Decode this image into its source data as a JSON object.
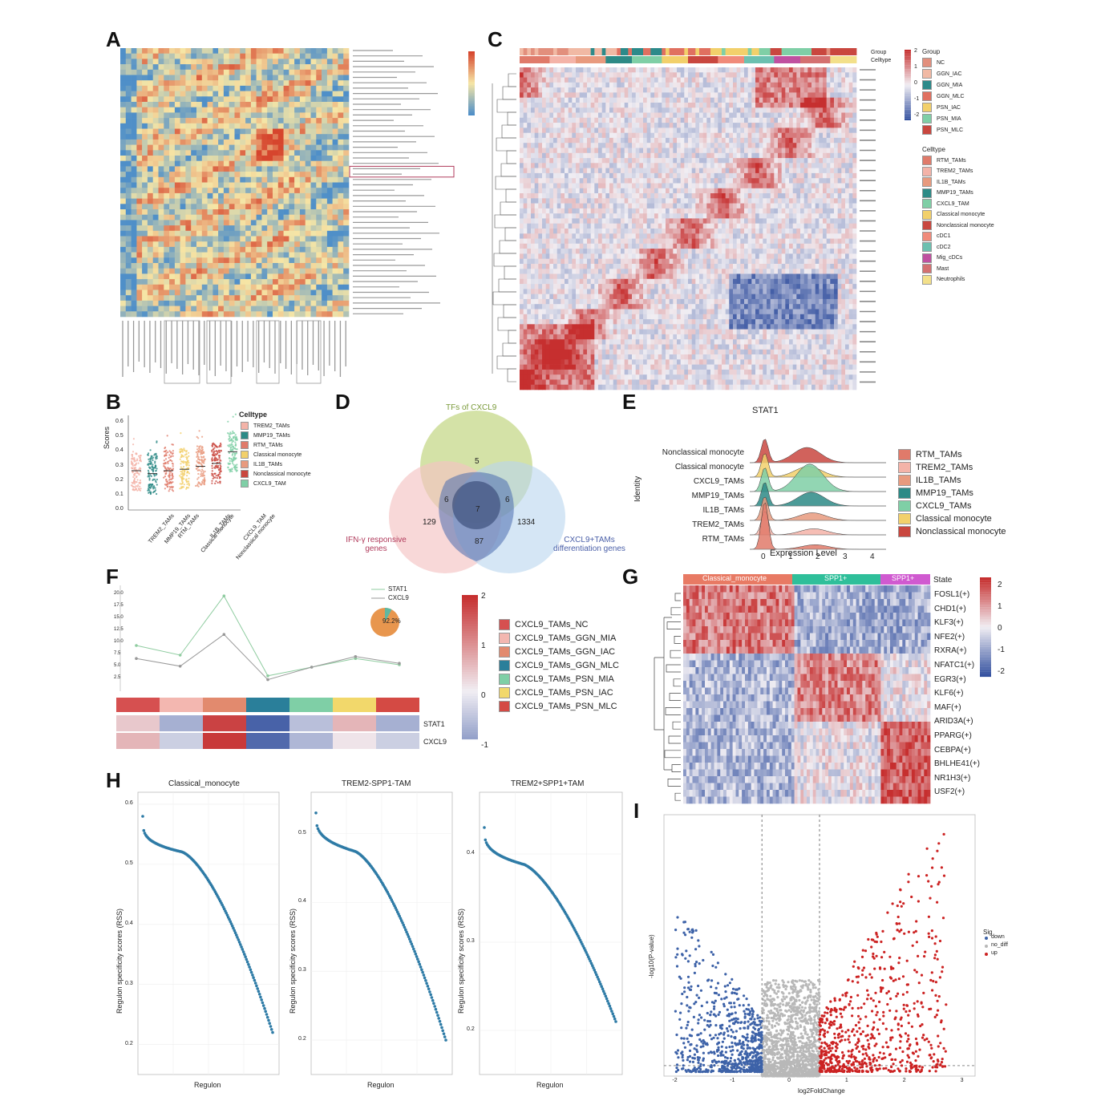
{
  "panels": {
    "A": {
      "letter": "A"
    },
    "B": {
      "letter": "B",
      "ylabel": "Scores",
      "yticks": [
        "0.6",
        "0.5",
        "0.4",
        "0.3",
        "0.2",
        "0.1",
        "0.0"
      ],
      "legend_title": "Celltype",
      "legend": [
        "TREM2_TAMs",
        "MMP19_TAMs",
        "RTM_TAMs",
        "Classical monocyte",
        "IL1B_TAMs",
        "Nonclassical monocyte",
        "CXCL9_TAM"
      ],
      "categories": [
        "TREM2_TAMs",
        "MMP19_TAMs",
        "RTM_TAMs",
        "Classical monocyte",
        "IL1B_TAMs",
        "Nonclassical monocyte",
        "CXCL9_TAM"
      ]
    },
    "C": {
      "letter": "C",
      "track1": "Group",
      "track2": "Celltype",
      "group_title": "Group",
      "groups": [
        "NC",
        "GGN_IAC",
        "GGN_MIA",
        "GGN_MLC",
        "PSN_IAC",
        "PSN_MIA",
        "PSN_MLC"
      ],
      "celltype_title": "Celltype",
      "celltypes": [
        "RTM_TAMs",
        "TREM2_TAMs",
        "IL1B_TAMs",
        "MMP19_TAMs",
        "CXCL9_TAM",
        "Classical monocyte",
        "Nonclassical monocyte",
        "cDC1",
        "cDC2",
        "Mig_cDCs",
        "Mast",
        "Neutrophils"
      ],
      "scale": [
        "2",
        "1",
        "0",
        "-1",
        "-2"
      ]
    },
    "D": {
      "letter": "D",
      "set1": "TFs of CXCL9",
      "set2": "IFN-γ responsive genes",
      "set3": "CXCL9+TAMs differentiation genes",
      "n_only1": "5",
      "n_only2": "129",
      "n_only3": "1334",
      "n_12": "6",
      "n_13": "6",
      "n_23": "87",
      "n_123": "7"
    },
    "E": {
      "letter": "E",
      "title": "STAT1",
      "xlabel": "Expression Level",
      "ylabel": "Identity",
      "xticks": [
        "0",
        "1",
        "2",
        "3",
        "4"
      ],
      "rows": [
        "Nonclassical monocyte",
        "Classical monocyte",
        "CXCL9_TAMs",
        "MMP19_TAMs",
        "IL1B_TAMs",
        "TREM2_TAMs",
        "RTM_TAMs"
      ],
      "legend": [
        "RTM_TAMs",
        "TREM2_TAMs",
        "IL1B_TAMs",
        "MMP19_TAMs",
        "CXCL9_TAMs",
        "Classical monocyte",
        "Nonclassical monocyte"
      ]
    },
    "F": {
      "letter": "F",
      "series": [
        "STAT1",
        "CXCL9"
      ],
      "pie_label": "92.2%",
      "rows": [
        "STAT1",
        "CXCL9"
      ],
      "legend": [
        "CXCL9_TAMs_NC",
        "CXCL9_TAMs_GGN_MIA",
        "CXCL9_TAMs_GGN_IAC",
        "CXCL9_TAMs_GGN_MLC",
        "CXCL9_TAMs_PSN_MIA",
        "CXCL9_TAMs_PSN_IAC",
        "CXCL9_TAMs_PSN_MLC"
      ],
      "scale": [
        "2",
        "1",
        "0",
        "-1"
      ]
    },
    "G": {
      "letter": "G",
      "states": [
        "Classical_monocyte",
        "SPP1+",
        "SPP1+"
      ],
      "state_title": "State",
      "genes": [
        "FOSL1(+)",
        "CHD1(+)",
        "KLF3(+)",
        "NFE2(+)",
        "RXRA(+)",
        "NFATC1(+)",
        "EGR3(+)",
        "KLF6(+)",
        "MAF(+)",
        "ARID3A(+)",
        "PPARG(+)",
        "CEBPA(+)",
        "BHLHE41(+)",
        "NR1H3(+)",
        "USF2(+)"
      ],
      "scale": [
        "2",
        "1",
        "0",
        "-1",
        "-2"
      ]
    },
    "H": {
      "letter": "H",
      "plots": [
        {
          "title": "Classical_monocyte",
          "xlabel": "Regulon",
          "ylabel": "Regulon specificity scores (RSS)",
          "yticks": [
            "0.6",
            "0.5",
            "0.4",
            "0.3",
            "0.2"
          ]
        },
        {
          "title": "TREM2-SPP1-TAM",
          "xlabel": "Regulon",
          "ylabel": "Regulon specificity scores (RSS)",
          "yticks": [
            "0.5",
            "0.4",
            "0.3",
            "0.2"
          ]
        },
        {
          "title": "TREM2+SPP1+TAM",
          "xlabel": "Regulon",
          "ylabel": "Regulon specificity scores (RSS)",
          "yticks": [
            "0.4",
            "0.3",
            "0.2"
          ]
        }
      ]
    },
    "I": {
      "letter": "I",
      "xlabel": "log2FoldChange",
      "ylabel": "-log10(P-value)",
      "legend_title": "Sig",
      "legend": [
        "down",
        "no_diff",
        "up"
      ],
      "xticks": [
        "-2",
        "-1",
        "0",
        "1",
        "2",
        "3"
      ]
    }
  },
  "chart_data": [
    {
      "type": "heatmap",
      "panel": "A",
      "title": "",
      "xlabel": "",
      "ylabel": ""
    },
    {
      "type": "scatter",
      "panel": "B",
      "ylabel": "Scores",
      "ylim": [
        0,
        0.65
      ],
      "categories": [
        "TREM2_TAMs",
        "MMP19_TAMs",
        "RTM_TAMs",
        "Classical monocyte",
        "IL1B_TAMs",
        "Nonclassical monocyte",
        "CXCL9_TAM"
      ],
      "values": [
        0.27,
        0.25,
        0.27,
        0.28,
        0.3,
        0.32,
        0.4
      ],
      "colors": [
        "#f4b3a8",
        "#2d8a86",
        "#e07a6a",
        "#f2d06b",
        "#e89a7e",
        "#c9473f",
        "#7fcfa6"
      ]
    },
    {
      "type": "heatmap",
      "panel": "C",
      "ylim": [
        -2,
        2
      ]
    },
    {
      "type": "ridge",
      "panel": "E",
      "title": "STAT1",
      "xlabel": "Expression Level",
      "ylabel": "Identity",
      "xlim": [
        -0.5,
        4.5
      ]
    },
    {
      "type": "line",
      "panel": "F",
      "categories": [
        "NC",
        "GGN_MIA",
        "GGN_IAC",
        "GGN_MLC",
        "PSN_MIA",
        "PSN_IAC",
        "PSN_MLC"
      ],
      "series": [
        {
          "name": "STAT1",
          "values": [
            9.5,
            7.5,
            19.8,
            3.2,
            5.0,
            6.8,
            5.5
          ],
          "color": "#8fcca0"
        },
        {
          "name": "CXCL9",
          "values": [
            6.8,
            5.2,
            11.8,
            2.4,
            5.0,
            7.2,
            5.8
          ],
          "color": "#999999"
        }
      ],
      "yticks": [
        "20.0",
        "17.5",
        "15.0",
        "12.5",
        "10.0",
        "7.5",
        "5.0",
        "2.5"
      ],
      "ylim": [
        0,
        22
      ]
    },
    {
      "type": "heatmap",
      "panel": "G",
      "ylim": [
        -2,
        2
      ]
    },
    {
      "type": "line",
      "panel": "H",
      "title": "Classical_monocyte",
      "xlabel": "Regulon",
      "ylabel": "Regulon specificity scores (RSS)",
      "ylim": [
        0.15,
        0.62
      ]
    },
    {
      "type": "line",
      "panel": "H",
      "title": "TREM2-SPP1-TAM",
      "xlabel": "Regulon",
      "ylabel": "Regulon specificity scores (RSS)",
      "ylim": [
        0.15,
        0.56
      ]
    },
    {
      "type": "line",
      "panel": "H",
      "title": "TREM2+SPP1+TAM",
      "xlabel": "Regulon",
      "ylabel": "Regulon specificity scores (RSS)",
      "ylim": [
        0.15,
        0.47
      ]
    },
    {
      "type": "scatter",
      "panel": "I",
      "xlabel": "log2FoldChange",
      "ylabel": "-log10(P-value)",
      "xlim": [
        -2.2,
        3.2
      ],
      "ylim": [
        0,
        300
      ],
      "series": [
        {
          "name": "down",
          "color": "#3d62a8"
        },
        {
          "name": "no_diff",
          "color": "#b8b8b8"
        },
        {
          "name": "up",
          "color": "#cc2222"
        }
      ]
    }
  ],
  "colors": {
    "hot": "#c8392d",
    "cold": "#3b5fa6",
    "mid": "#f3ecd9"
  }
}
